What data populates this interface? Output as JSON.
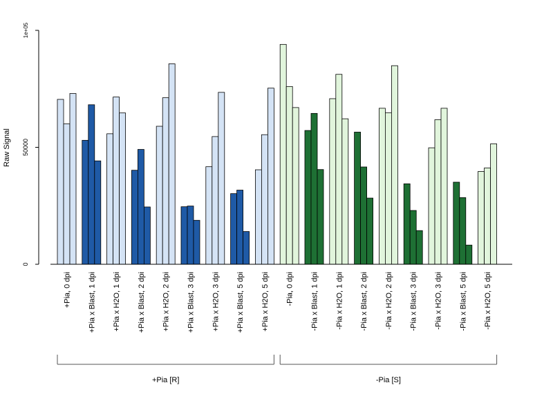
{
  "chart_data": {
    "type": "bar",
    "ylabel": "Raw Signal",
    "xlabel": "",
    "ylim": [
      0,
      100000
    ],
    "yticks": [
      {
        "value": 0,
        "label": "0"
      },
      {
        "value": 50000,
        "label": "50000"
      },
      {
        "value": 100000,
        "label": "1e+05"
      }
    ],
    "grid": false,
    "legend": "none",
    "categories": [
      "+Pia, 0 dpi",
      "+Pia x Blast, 1 dpi",
      "+Pia x H2O, 1 dpi",
      "+Pia x Blast, 2 dpi",
      "+Pia x H2O, 2 dpi",
      "+Pia x Blast, 3 dpi",
      "+Pia x H2O, 3 dpi",
      "+Pia x Blast, 5 dpi",
      "+Pia x H2O, 5 dpi",
      "-Pia, 0 dpi",
      "-Pia x Blast, 1 dpi",
      "-Pia x H2O, 1 dpi",
      "-Pia x Blast, 2 dpi",
      "-Pia x H2O, 2 dpi",
      "-Pia x Blast, 3 dpi",
      "-Pia x H2O, 3 dpi",
      "-Pia x Blast, 5 dpi",
      "-Pia x H2O, 5 dpi"
    ],
    "values": [
      [
        70500,
        60000,
        73000
      ],
      [
        53000,
        68200,
        44200
      ],
      [
        55800,
        71500,
        64700
      ],
      [
        40200,
        49100,
        24500
      ],
      [
        59000,
        71200,
        85700
      ],
      [
        24600,
        24900,
        18800
      ],
      [
        41700,
        54600,
        73500
      ],
      [
        30200,
        31700,
        14000
      ],
      [
        40400,
        55400,
        75300
      ],
      [
        94000,
        76000,
        67000
      ],
      [
        57200,
        64500,
        40500
      ],
      [
        70800,
        81200,
        62200
      ],
      [
        56500,
        41600,
        28300
      ],
      [
        66700,
        64800,
        84900
      ],
      [
        34400,
        23000,
        14400
      ],
      [
        49800,
        61800,
        66700
      ],
      [
        35100,
        28500,
        8200
      ],
      [
        39700,
        41200,
        51500
      ]
    ],
    "bar_colors": [
      "#d4e3f5",
      "#1f5aa6",
      "#d4e3f5",
      "#1f5aa6",
      "#d4e3f5",
      "#1f5aa6",
      "#d4e3f5",
      "#1f5aa6",
      "#d4e3f5",
      "#e1f5dc",
      "#1e7034",
      "#e1f5dc",
      "#1e7034",
      "#e1f5dc",
      "#1e7034",
      "#e1f5dc",
      "#1e7034",
      "#e1f5dc"
    ],
    "groups": [
      {
        "label": "+Pia [R]",
        "from": 0,
        "to": 8
      },
      {
        "label": "-Pia [S]",
        "from": 9,
        "to": 17
      }
    ]
  }
}
